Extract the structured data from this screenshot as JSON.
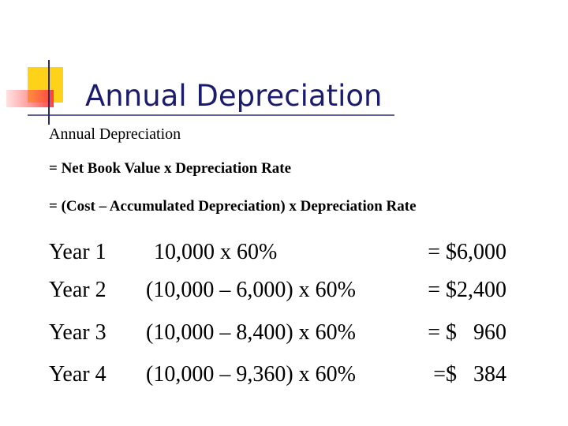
{
  "header": {
    "title": "Annual Depreciation"
  },
  "body": {
    "lines": [
      "Annual Depreciation",
      "= Net Book Value x Depreciation Rate",
      "= (Cost – Accumulated Depreciation) x Depreciation Rate"
    ]
  },
  "table": {
    "rows": [
      [
        "Year 1",
        "10,000 x 60%",
        "= $6,000"
      ],
      [
        "Year 2",
        "(10,000 – 6,000) x 60%",
        "= $2,400"
      ],
      [
        "Year 3",
        "(10,000 – 8,400) x 60%",
        "= $   960"
      ],
      [
        "Year 4",
        "(10,000 – 9,360) x 60%",
        "=$   384"
      ]
    ]
  }
}
